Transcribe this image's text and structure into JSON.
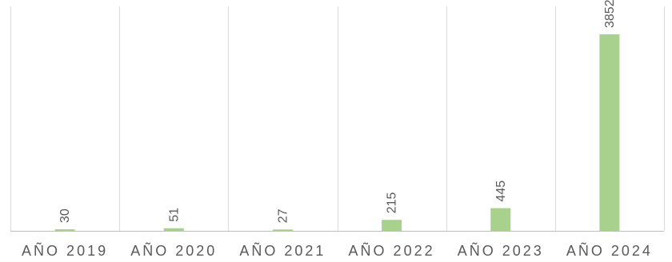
{
  "chart_data": {
    "type": "bar",
    "title": "",
    "xlabel": "",
    "ylabel": "",
    "categories": [
      "AÑO 2019",
      "AÑO 2020",
      "AÑO 2021",
      "AÑO 2022",
      "AÑO 2023",
      "AÑO 2024"
    ],
    "values": [
      30,
      51,
      27,
      215,
      445,
      3852
    ],
    "ylim": [
      0,
      4400
    ],
    "data_labels": [
      "30",
      "51",
      "27",
      "215",
      "445",
      "3852"
    ],
    "data_label_orientation": "vertical",
    "grid": "vertical category separators",
    "legend": "none",
    "colors": {
      "bar": "#a9d18e",
      "grid": "#d9d9d9",
      "axis": "#bfbfbf",
      "text": "#595959"
    }
  }
}
